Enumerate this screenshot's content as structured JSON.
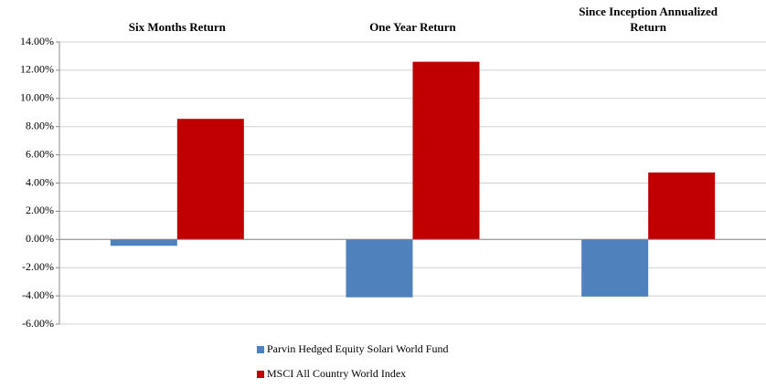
{
  "chart_data": {
    "type": "bar",
    "categories": [
      "Six Months Return",
      "One Year Return",
      "Since Inception Annualized Return"
    ],
    "series": [
      {
        "name": "Parvin Hedged Equity Solari World Fund",
        "color": "#4f81bd",
        "values": [
          -0.45,
          -4.1,
          -4.05
        ]
      },
      {
        "name": "MSCI All Country World Index",
        "color": "#c00000",
        "values": [
          8.55,
          12.6,
          4.75
        ]
      }
    ],
    "ylim": [
      -6,
      14
    ],
    "yticks": [
      {
        "value": -6,
        "label": "-6.00%"
      },
      {
        "value": -4,
        "label": "-4.00%"
      },
      {
        "value": -2,
        "label": "-2.00%"
      },
      {
        "value": 0,
        "label": "0.00%"
      },
      {
        "value": 2,
        "label": "2.00%"
      },
      {
        "value": 4,
        "label": "4.00%"
      },
      {
        "value": 6,
        "label": "6.00%"
      },
      {
        "value": 8,
        "label": "8.00%"
      },
      {
        "value": 10,
        "label": "10.00%"
      },
      {
        "value": 12,
        "label": "12.00%"
      },
      {
        "value": 14,
        "label": "14.00%"
      }
    ],
    "grid": true
  }
}
